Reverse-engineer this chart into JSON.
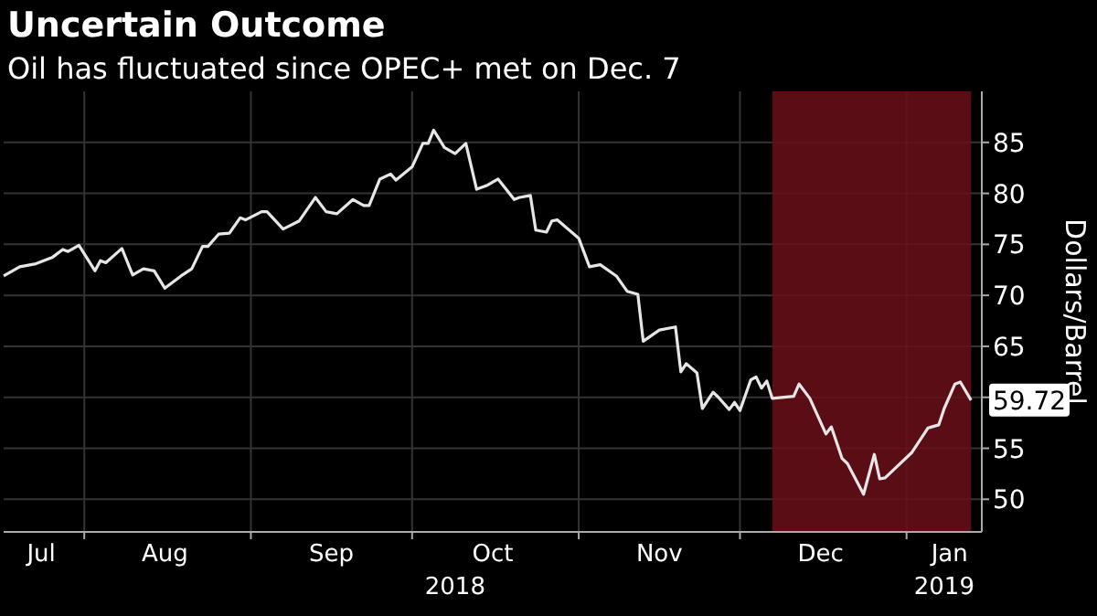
{
  "chart_data": {
    "type": "line",
    "title": "Uncertain Outcome",
    "subtitle": "Oil has fluctuated since OPEC+ met on Dec. 7",
    "ylabel": "Dollars/Barrel",
    "x": [
      "2018-07-17",
      "2018-07-20",
      "2018-07-23",
      "2018-07-26",
      "2018-07-28",
      "2018-07-29",
      "2018-07-31",
      "2018-08-03",
      "2018-08-04",
      "2018-08-05",
      "2018-08-08",
      "2018-08-10",
      "2018-08-12",
      "2018-08-14",
      "2018-08-16",
      "2018-08-19",
      "2018-08-21",
      "2018-08-23",
      "2018-08-24",
      "2018-08-26",
      "2018-08-28",
      "2018-08-30",
      "2018-08-31",
      "2018-09-03",
      "2018-09-04",
      "2018-09-07",
      "2018-09-10",
      "2018-09-13",
      "2018-09-15",
      "2018-09-17",
      "2018-09-20",
      "2018-09-22",
      "2018-09-23",
      "2018-09-25",
      "2018-09-27",
      "2018-09-28",
      "2018-10-01",
      "2018-10-03",
      "2018-10-04",
      "2018-10-05",
      "2018-10-07",
      "2018-10-09",
      "2018-10-11",
      "2018-10-13",
      "2018-10-15",
      "2018-10-17",
      "2018-10-20",
      "2018-10-21",
      "2018-10-23",
      "2018-10-24",
      "2018-10-26",
      "2018-10-27",
      "2018-10-28",
      "2018-11-01",
      "2018-11-03",
      "2018-11-05",
      "2018-11-08",
      "2018-11-10",
      "2018-11-12",
      "2018-11-13",
      "2018-11-16",
      "2018-11-19",
      "2018-11-20",
      "2018-11-21",
      "2018-11-23",
      "2018-11-24",
      "2018-11-26",
      "2018-11-27",
      "2018-11-29",
      "2018-11-30",
      "2018-12-01",
      "2018-12-03",
      "2018-12-04",
      "2018-12-05",
      "2018-12-06",
      "2018-12-07",
      "2018-12-11",
      "2018-12-12",
      "2018-12-14",
      "2018-12-17",
      "2018-12-18",
      "2018-12-20",
      "2018-12-21",
      "2018-12-24",
      "2018-12-26",
      "2018-12-27",
      "2018-12-28",
      "2019-01-02",
      "2019-01-05",
      "2019-01-07",
      "2019-01-08",
      "2019-01-10",
      "2019-01-11",
      "2019-01-13"
    ],
    "series": [
      {
        "color": "#e6e6e6",
        "values": [
          71.9,
          72.8,
          73.1,
          73.7,
          74.5,
          74.3,
          74.9,
          72.4,
          73.4,
          73.2,
          74.6,
          72.0,
          72.6,
          72.4,
          70.7,
          71.9,
          72.6,
          74.8,
          74.8,
          76.0,
          76.1,
          77.6,
          77.4,
          78.2,
          78.2,
          76.5,
          77.3,
          79.6,
          78.2,
          78.0,
          79.4,
          78.8,
          78.8,
          81.4,
          81.9,
          81.3,
          82.6,
          84.9,
          84.9,
          86.2,
          84.5,
          83.9,
          84.9,
          80.4,
          80.8,
          81.4,
          79.4,
          79.6,
          79.8,
          76.4,
          76.2,
          77.3,
          77.4,
          75.6,
          72.8,
          73.0,
          71.9,
          70.4,
          70.1,
          65.5,
          66.6,
          66.9,
          62.5,
          63.3,
          62.4,
          58.9,
          60.5,
          60.0,
          58.8,
          59.5,
          58.7,
          61.7,
          62.0,
          60.9,
          61.6,
          59.9,
          60.1,
          61.3,
          59.9,
          56.4,
          57.1,
          54.0,
          53.5,
          50.5,
          54.4,
          52.0,
          52.1,
          54.6,
          57.0,
          57.3,
          58.9,
          61.3,
          61.5,
          59.72
        ],
        "value_labels": [
          null,
          null,
          null,
          null,
          null,
          null,
          null,
          null,
          null,
          null,
          null,
          null,
          null,
          null,
          null,
          null,
          null,
          null,
          null,
          null,
          null,
          null,
          null,
          null,
          null,
          null,
          null,
          null,
          null,
          null,
          null,
          null,
          null,
          null,
          null,
          null,
          null,
          null,
          null,
          null,
          null,
          null,
          null,
          null,
          null,
          null,
          null,
          null,
          null,
          null,
          null,
          null,
          null,
          null,
          null,
          null,
          null,
          null,
          null,
          null,
          null,
          null,
          null,
          null,
          null,
          null,
          null,
          null,
          null,
          null,
          null,
          null,
          null,
          null,
          null,
          null,
          null,
          null,
          null,
          null,
          null,
          null,
          null,
          null,
          null,
          null,
          null,
          null,
          null,
          null,
          null,
          null,
          null,
          "59.72"
        ]
      }
    ],
    "xlim": [
      "2018-07-17",
      "2019-01-15"
    ],
    "xticks": [
      {
        "value": "2018-07-24",
        "label": "Jul"
      },
      {
        "value": "2018-08-01",
        "label": null
      },
      {
        "value": "2018-08-16",
        "label": "Aug"
      },
      {
        "value": "2018-09-01",
        "label": null
      },
      {
        "value": "2018-09-16",
        "label": "Sep"
      },
      {
        "value": "2018-10-01",
        "label": null
      },
      {
        "value": "2018-10-16",
        "label": "Oct"
      },
      {
        "value": "2018-11-01",
        "label": null
      },
      {
        "value": "2018-11-16",
        "label": "Nov"
      },
      {
        "value": "2018-12-01",
        "label": null
      },
      {
        "value": "2018-12-16",
        "label": "Dec"
      },
      {
        "value": "2019-01-01",
        "label": null
      },
      {
        "value": "2019-01-09",
        "label": "Jan"
      }
    ],
    "ylim": [
      46.8,
      90
    ],
    "yticks": [
      50,
      55,
      {
        "value": 60,
        "label": null
      },
      65,
      70,
      75,
      80,
      85
    ],
    "grid": true,
    "line_style": "solid",
    "marker": "none",
    "bands": [
      {
        "axis": "x",
        "from": "2018-12-07",
        "to": "2019-01-13",
        "color": "#6b0f1a"
      }
    ],
    "annotations": [
      "2018",
      "2019"
    ]
  }
}
